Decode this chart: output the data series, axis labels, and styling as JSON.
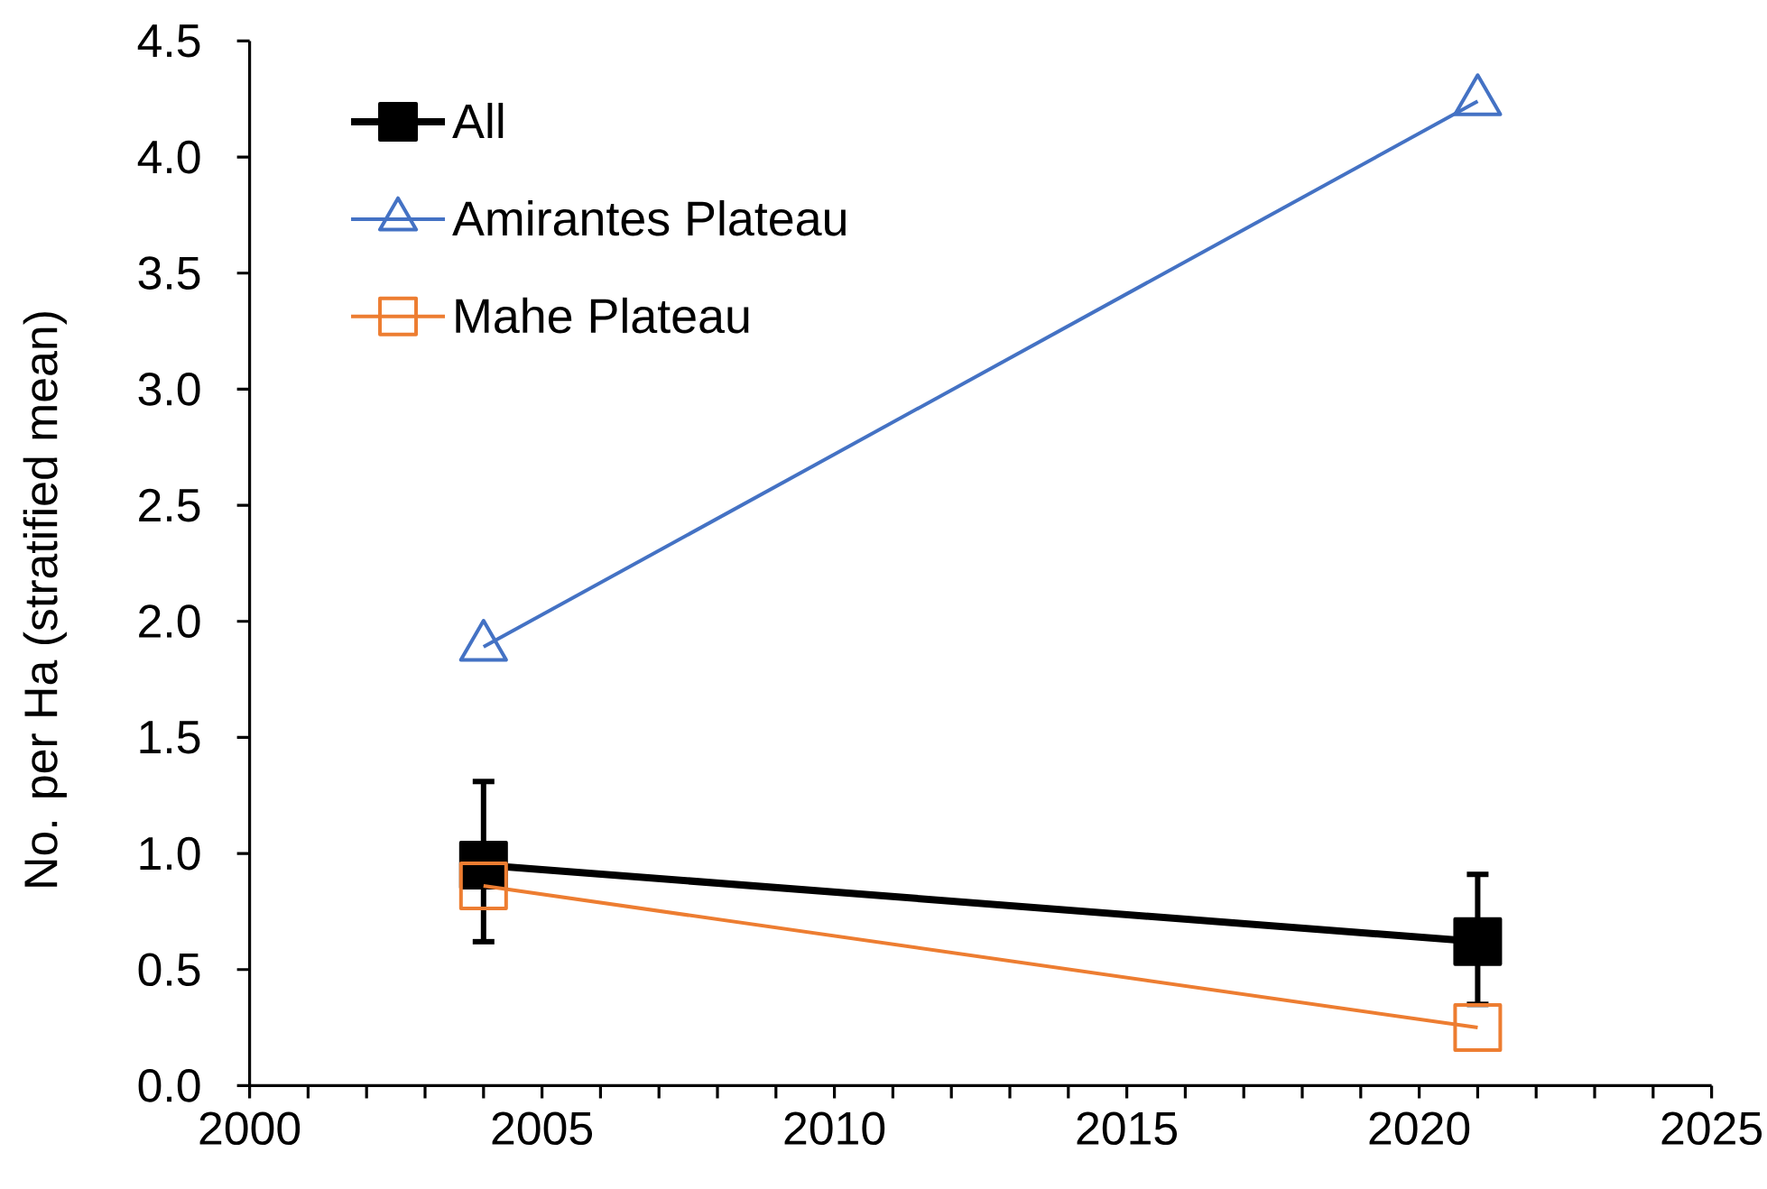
{
  "chart_data": {
    "type": "line",
    "ylabel": "No. per Ha (stratified mean)",
    "x": [
      2004,
      2021
    ],
    "series": [
      {
        "name": "All",
        "color": "#000000",
        "values": [
          0.95,
          0.62
        ],
        "errors": [
          [
            0.62,
            1.31
          ],
          [
            0.35,
            0.91
          ]
        ],
        "marker": "square"
      },
      {
        "name": "Amirantes Plateau",
        "color": "#4472c4",
        "values": [
          1.89,
          4.24
        ],
        "marker": "triangle"
      },
      {
        "name": "Mahe Plateau",
        "color": "#ed7d31",
        "values": [
          0.86,
          0.25
        ],
        "marker": "square"
      }
    ],
    "xlim": [
      2000,
      2025
    ],
    "ylim": [
      0,
      4.5
    ],
    "xticks": [
      2000,
      {
        "value": 2001,
        "label": null
      },
      {
        "value": 2002,
        "label": null
      },
      {
        "value": 2003,
        "label": null
      },
      {
        "value": 2004,
        "label": null
      },
      2005,
      {
        "value": 2006,
        "label": null
      },
      {
        "value": 2007,
        "label": null
      },
      {
        "value": 2008,
        "label": null
      },
      {
        "value": 2009,
        "label": null
      },
      2010,
      {
        "value": 2011,
        "label": null
      },
      {
        "value": 2012,
        "label": null
      },
      {
        "value": 2013,
        "label": null
      },
      {
        "value": 2014,
        "label": null
      },
      2015,
      {
        "value": 2016,
        "label": null
      },
      {
        "value": 2017,
        "label": null
      },
      {
        "value": 2018,
        "label": null
      },
      {
        "value": 2019,
        "label": null
      },
      2020,
      {
        "value": 2021,
        "label": null
      },
      {
        "value": 2022,
        "label": null
      },
      {
        "value": 2023,
        "label": null
      },
      {
        "value": 2024,
        "label": null
      },
      2025
    ],
    "yticks": [
      {
        "value": 0,
        "label": "0.0"
      },
      {
        "value": 0.5,
        "label": "0.5"
      },
      {
        "value": 1,
        "label": "1.0"
      },
      {
        "value": 1.5,
        "label": "1.5"
      },
      {
        "value": 2,
        "label": "2.0"
      },
      {
        "value": 2.5,
        "label": "2.5"
      },
      {
        "value": 3,
        "label": "3.0"
      },
      {
        "value": 3.5,
        "label": "3.5"
      },
      {
        "value": 4,
        "label": "4.0"
      },
      {
        "value": 4.5,
        "label": "4.5"
      }
    ],
    "legend": "top left"
  }
}
